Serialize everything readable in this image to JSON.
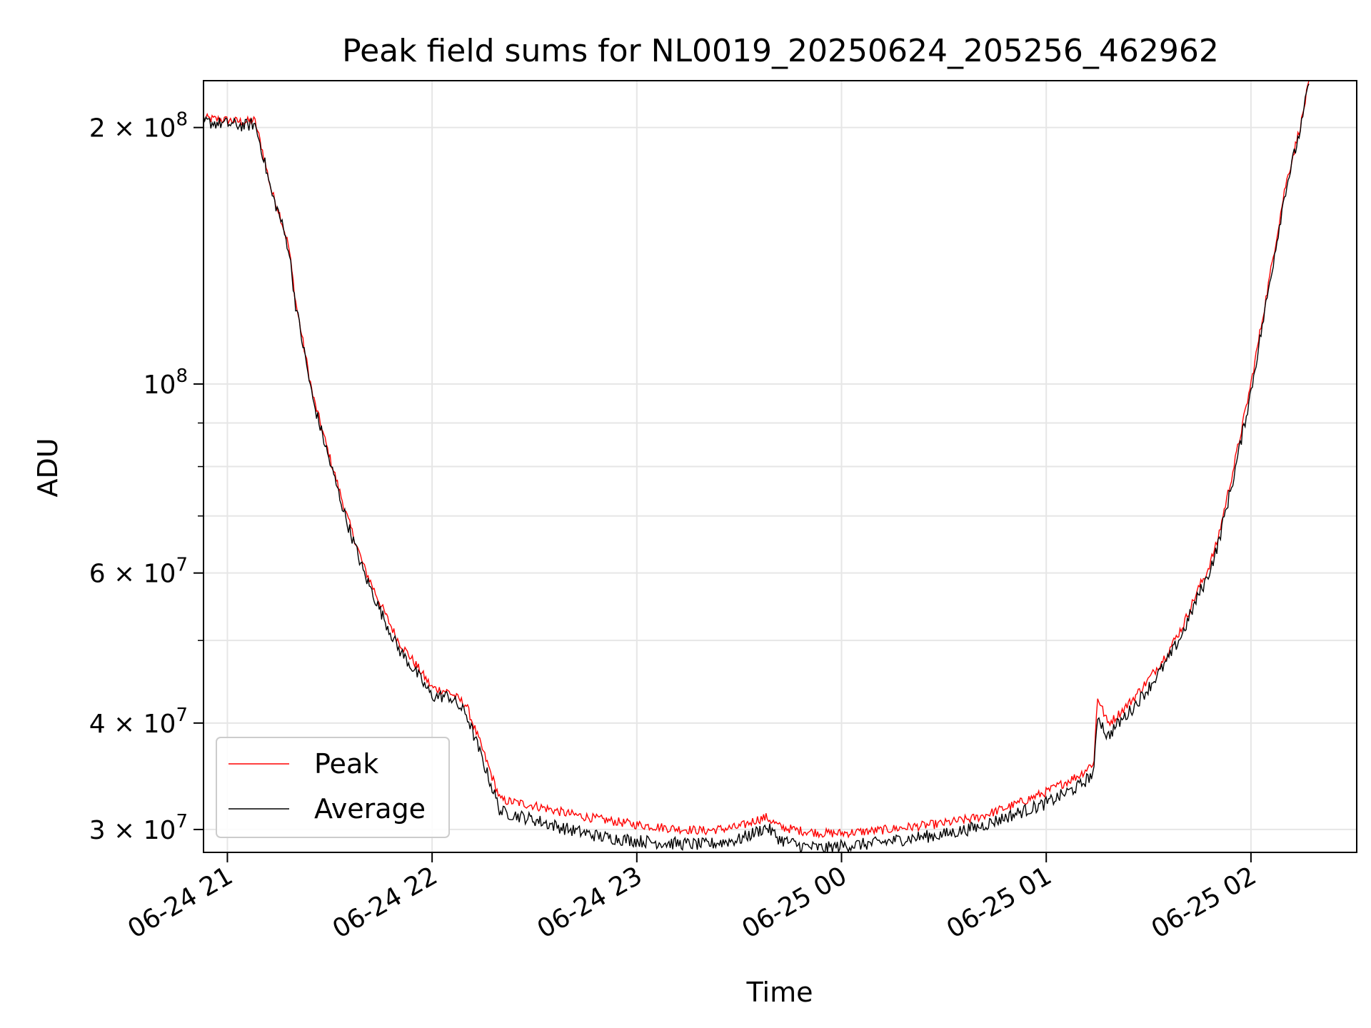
{
  "chart_data": {
    "type": "line",
    "title": "Peak field sums for NL0019_20250624_205256_462962",
    "xlabel": "Time",
    "ylabel": "ADU",
    "yscale": "log",
    "xlim": [
      "2025-06-24 20:53",
      "2025-06-25 02:31"
    ],
    "ylim": [
      28200000,
      227000000
    ],
    "grid": true,
    "legend_position": "lower-left",
    "x_ticks": [
      {
        "t": "2025-06-24 21:00",
        "label": "06-24 21"
      },
      {
        "t": "2025-06-24 22:00",
        "label": "06-24 22"
      },
      {
        "t": "2025-06-24 23:00",
        "label": "06-24 23"
      },
      {
        "t": "2025-06-25 00:00",
        "label": "06-25 00"
      },
      {
        "t": "2025-06-25 01:00",
        "label": "06-25 01"
      },
      {
        "t": "2025-06-25 02:00",
        "label": "06-25 02"
      }
    ],
    "y_major_ticks": [
      {
        "value": 30000000,
        "mantissa": "3",
        "times": "×",
        "base": "10",
        "exp": "7"
      },
      {
        "value": 40000000,
        "mantissa": "4",
        "times": "×",
        "base": "10",
        "exp": "7"
      },
      {
        "value": 60000000,
        "mantissa": "6",
        "times": "×",
        "base": "10",
        "exp": "7"
      },
      {
        "value": 100000000,
        "mantissa": "",
        "times": "",
        "base": "10",
        "exp": "8"
      },
      {
        "value": 200000000,
        "mantissa": "2",
        "times": "×",
        "base": "10",
        "exp": "8"
      }
    ],
    "y_minor_ticks": [
      50000000,
      70000000,
      80000000,
      90000000
    ],
    "series": [
      {
        "name": "Peak",
        "color": "#ff0000",
        "x": [
          "2025-06-24 20:53",
          "2025-06-24 21:00",
          "2025-06-24 21:05",
          "2025-06-24 21:08",
          "2025-06-24 21:10",
          "2025-06-24 21:13",
          "2025-06-24 21:15",
          "2025-06-24 21:18",
          "2025-06-24 21:20",
          "2025-06-24 21:25",
          "2025-06-24 21:30",
          "2025-06-24 21:35",
          "2025-06-24 21:40",
          "2025-06-24 21:45",
          "2025-06-24 21:50",
          "2025-06-24 21:55",
          "2025-06-24 22:00",
          "2025-06-24 22:05",
          "2025-06-24 22:10",
          "2025-06-24 22:15",
          "2025-06-24 22:20",
          "2025-06-24 22:30",
          "2025-06-24 22:40",
          "2025-06-24 22:50",
          "2025-06-24 23:00",
          "2025-06-24 23:10",
          "2025-06-24 23:20",
          "2025-06-24 23:30",
          "2025-06-24 23:35",
          "2025-06-24 23:38",
          "2025-06-24 23:42",
          "2025-06-24 23:48",
          "2025-06-24 23:55",
          "2025-06-25 00:00",
          "2025-06-25 00:10",
          "2025-06-25 00:20",
          "2025-06-25 00:30",
          "2025-06-25 00:40",
          "2025-06-25 00:50",
          "2025-06-25 01:00",
          "2025-06-25 01:10",
          "2025-06-25 01:14",
          "2025-06-25 01:15",
          "2025-06-25 01:18",
          "2025-06-25 01:20",
          "2025-06-25 01:25",
          "2025-06-25 01:30",
          "2025-06-25 01:35",
          "2025-06-25 01:40",
          "2025-06-25 01:45",
          "2025-06-25 01:47",
          "2025-06-25 01:50",
          "2025-06-25 01:55",
          "2025-06-25 02:00",
          "2025-06-25 02:05",
          "2025-06-25 02:10",
          "2025-06-25 02:15",
          "2025-06-25 02:17"
        ],
        "y": [
          205000000,
          204000000,
          203000000,
          204000000,
          190000000,
          168000000,
          160000000,
          145000000,
          125000000,
          97000000,
          82000000,
          70000000,
          61000000,
          55000000,
          50000000,
          47000000,
          44000000,
          43500000,
          42000000,
          37000000,
          32500000,
          32000000,
          31300000,
          30800000,
          30400000,
          30100000,
          29900000,
          30200000,
          30800000,
          31000000,
          30200000,
          29900000,
          29700000,
          29700000,
          29900000,
          30200000,
          30500000,
          31000000,
          32000000,
          33200000,
          34800000,
          36000000,
          43000000,
          40000000,
          40500000,
          42500000,
          45000000,
          48000000,
          52000000,
          58000000,
          60000000,
          65000000,
          80000000,
          100000000,
          130000000,
          170000000,
          205000000,
          227000000
        ]
      },
      {
        "name": "Average",
        "color": "#000000",
        "x": [
          "2025-06-24 20:53",
          "2025-06-24 21:00",
          "2025-06-24 21:05",
          "2025-06-24 21:08",
          "2025-06-24 21:10",
          "2025-06-24 21:13",
          "2025-06-24 21:15",
          "2025-06-24 21:18",
          "2025-06-24 21:20",
          "2025-06-24 21:25",
          "2025-06-24 21:30",
          "2025-06-24 21:35",
          "2025-06-24 21:40",
          "2025-06-24 21:45",
          "2025-06-24 21:50",
          "2025-06-24 21:55",
          "2025-06-24 22:00",
          "2025-06-24 22:05",
          "2025-06-24 22:10",
          "2025-06-24 22:15",
          "2025-06-24 22:20",
          "2025-06-24 22:30",
          "2025-06-24 22:40",
          "2025-06-24 22:50",
          "2025-06-24 23:00",
          "2025-06-24 23:10",
          "2025-06-24 23:20",
          "2025-06-24 23:30",
          "2025-06-24 23:35",
          "2025-06-24 23:38",
          "2025-06-24 23:42",
          "2025-06-24 23:48",
          "2025-06-24 23:55",
          "2025-06-25 00:00",
          "2025-06-25 00:10",
          "2025-06-25 00:20",
          "2025-06-25 00:30",
          "2025-06-25 00:40",
          "2025-06-25 00:50",
          "2025-06-25 01:00",
          "2025-06-25 01:10",
          "2025-06-25 01:14",
          "2025-06-25 01:15",
          "2025-06-25 01:18",
          "2025-06-25 01:20",
          "2025-06-25 01:25",
          "2025-06-25 01:30",
          "2025-06-25 01:35",
          "2025-06-25 01:40",
          "2025-06-25 01:45",
          "2025-06-25 01:47",
          "2025-06-25 01:50",
          "2025-06-25 01:55",
          "2025-06-25 02:00",
          "2025-06-25 02:05",
          "2025-06-25 02:10",
          "2025-06-25 02:15",
          "2025-06-25 02:17"
        ],
        "y": [
          203000000,
          202000000,
          201000000,
          202000000,
          189000000,
          167000000,
          159000000,
          144000000,
          124000000,
          96000000,
          81000000,
          69000000,
          60000000,
          54000000,
          49000000,
          46000000,
          43000000,
          43000000,
          41000000,
          36000000,
          31500000,
          30800000,
          30000000,
          29400000,
          29100000,
          28900000,
          28800000,
          29200000,
          29800000,
          30200000,
          29200000,
          28700000,
          28500000,
          28700000,
          28900000,
          29300000,
          29600000,
          30200000,
          31200000,
          32200000,
          33800000,
          35000000,
          41000000,
          38500000,
          39500000,
          41500000,
          44000000,
          47000000,
          51000000,
          57000000,
          59000000,
          64000000,
          78000000,
          98000000,
          128000000,
          168000000,
          203000000,
          227000000
        ]
      }
    ]
  }
}
